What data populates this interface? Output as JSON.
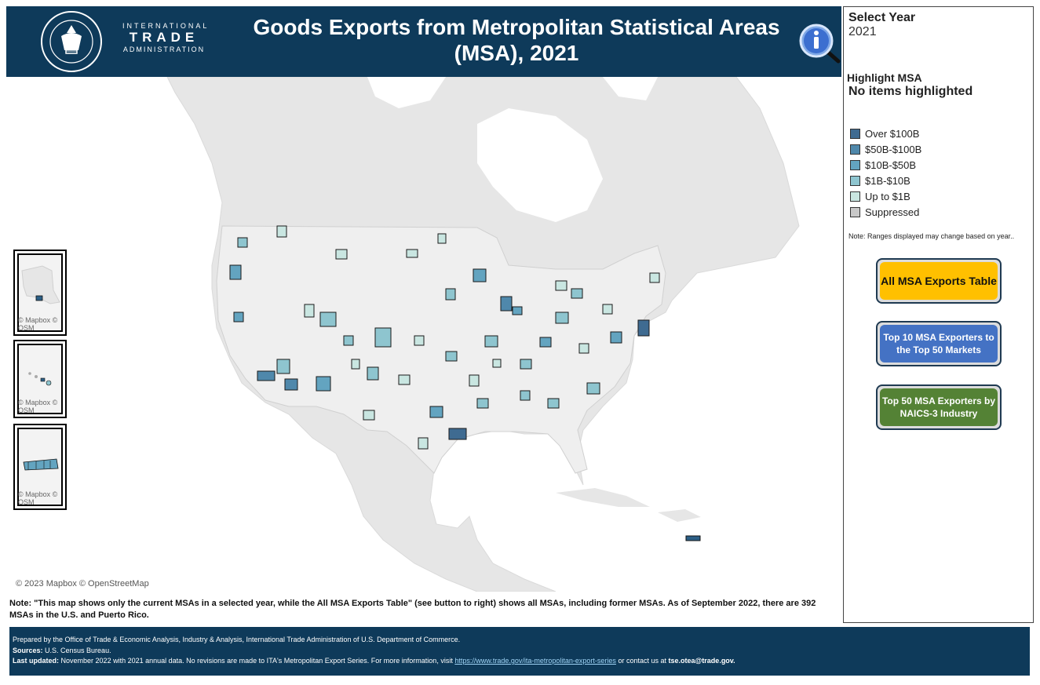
{
  "header": {
    "seal_text": "DEPARTMENT OF COMMERCE · UNITED STATES OF AMERICA",
    "logo_line1": "INTERNATIONAL",
    "logo_line2": "TRADE",
    "logo_line3": "ADMINISTRATION",
    "title_line1": "Goods Exports from Metropolitan Statistical Areas",
    "title_line2": "(MSA), 2021",
    "info_icon": "info-magnifier-icon"
  },
  "panel": {
    "select_year_label": "Select Year",
    "select_year_value": "2021",
    "highlight_label": "Highlight MSA",
    "highlight_value": "No items highlighted",
    "legend": [
      {
        "label": "Over $100B",
        "color": "#3f6b91"
      },
      {
        "label": "$50B-$100B",
        "color": "#4f88ab"
      },
      {
        "label": "$10B-$50B",
        "color": "#63a4c0"
      },
      {
        "label": "$1B-$10B",
        "color": "#8ec5cf"
      },
      {
        "label": "Up to $1B",
        "color": "#c9e6e1"
      },
      {
        "label": "Suppressed",
        "color": "#c8c8c8"
      }
    ],
    "range_note": "Note: Ranges displayed may change based on year..",
    "buttons": [
      {
        "label": "All MSA Exports Table",
        "color": "#ffc000",
        "text_color": "#111111"
      },
      {
        "label": "Top 10 MSA Exporters to the Top 50 Markets",
        "color": "#4472c4",
        "text_color": "#ffffff"
      },
      {
        "label": "Top 50 MSA Exporters by NAICS-3 Industry",
        "color": "#548235",
        "text_color": "#ffffff"
      }
    ]
  },
  "map": {
    "insets": [
      {
        "name": "Alaska",
        "attribution": "© Mapbox © OSM"
      },
      {
        "name": "Hawaii",
        "attribution": "© Mapbox © OSM"
      },
      {
        "name": "Puerto Rico",
        "attribution": "© Mapbox © OSM"
      }
    ],
    "attribution": "© 2023 Mapbox © OpenStreetMap",
    "land_color": "#e6e6e6",
    "state_color": "#efefef",
    "msas": [
      {
        "tier": 0
      },
      {
        "tier": 0
      },
      {
        "tier": 1
      },
      {
        "tier": 1
      },
      {
        "tier": 1
      },
      {
        "tier": 2
      },
      {
        "tier": 2
      },
      {
        "tier": 2
      },
      {
        "tier": 2
      },
      {
        "tier": 2
      },
      {
        "tier": 2
      },
      {
        "tier": 2
      },
      {
        "tier": 2
      },
      {
        "tier": 3
      },
      {
        "tier": 3
      },
      {
        "tier": 3
      },
      {
        "tier": 3
      },
      {
        "tier": 3
      },
      {
        "tier": 3
      },
      {
        "tier": 3
      },
      {
        "tier": 3
      },
      {
        "tier": 3
      },
      {
        "tier": 3
      },
      {
        "tier": 3
      },
      {
        "tier": 3
      },
      {
        "tier": 3
      },
      {
        "tier": 3
      },
      {
        "tier": 3
      },
      {
        "tier": 3
      },
      {
        "tier": 4
      },
      {
        "tier": 4
      },
      {
        "tier": 4
      },
      {
        "tier": 4
      },
      {
        "tier": 4
      },
      {
        "tier": 4
      },
      {
        "tier": 4
      },
      {
        "tier": 4
      },
      {
        "tier": 4
      },
      {
        "tier": 4
      },
      {
        "tier": 4
      },
      {
        "tier": 4
      },
      {
        "tier": 4
      },
      {
        "tier": 4
      },
      {
        "tier": 4
      },
      {
        "tier": 4
      }
    ]
  },
  "note_main": "Note: \"This map shows only the current MSAs in a selected year, while the All MSA Exports Table\" (see button to right) shows all MSAs, including former MSAs. As of September 2022, there are 392 MSAs in the U.S. and Puerto Rico.",
  "footer": {
    "line1": "Prepared by the Office of Trade & Economic Analysis, Industry & Analysis, International Trade Administration of U.S. Department of Commerce.",
    "sources_label": "Sources:",
    "sources_text": "U.S. Census Bureau.",
    "updated_label": "Last updated:",
    "updated_text": "November 2022 with 2021 annual data. No revisions are made to ITA's Metropolitan Export Series. For more information, visit",
    "link": "https://www.trade.gov/ita-metropolitan-export-series",
    "contact_text": "or contact us at",
    "email": "tse.otea@trade.gov."
  }
}
